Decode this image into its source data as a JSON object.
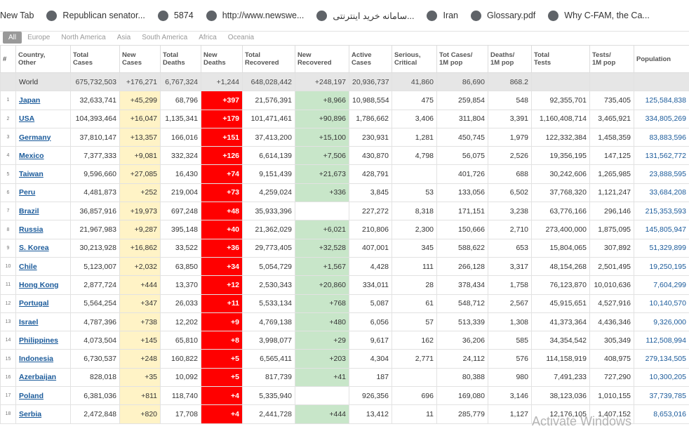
{
  "bookmarks": [
    "New Tab",
    "Republican senator...",
    "5874",
    "http://www.newswe...",
    "سامانه خرید اینترنتی...",
    "Iran",
    "Glossary.pdf",
    "Why C-FAM, the Ca..."
  ],
  "region_tabs": [
    "All",
    "Europe",
    "North America",
    "Asia",
    "South America",
    "Africa",
    "Oceania"
  ],
  "table": {
    "headers": [
      [
        "#"
      ],
      [
        "Country,",
        "Other"
      ],
      [
        "Total",
        "Cases"
      ],
      [
        "New",
        "Cases"
      ],
      [
        "Total",
        "Deaths"
      ],
      [
        "New",
        "Deaths"
      ],
      [
        "Total",
        "Recovered"
      ],
      [
        "New",
        "Recovered"
      ],
      [
        "Active",
        "Cases"
      ],
      [
        "Serious,",
        "Critical"
      ],
      [
        "Tot Cases/",
        "1M pop"
      ],
      [
        "Deaths/",
        "1M pop"
      ],
      [
        "Total",
        "Tests"
      ],
      [
        "Tests/",
        "1M pop"
      ],
      [
        "Population"
      ]
    ],
    "world_row": [
      null,
      "World",
      "675,732,503",
      "+176,271",
      "6,767,324",
      "+1,244",
      "648,028,442",
      "+248,197",
      "20,936,737",
      "41,860",
      "86,690",
      "868.2",
      null,
      null,
      null
    ],
    "rows": [
      [
        "1",
        "Japan",
        "32,633,741",
        "+45,299",
        "68,796",
        "+397",
        "21,576,391",
        "+8,966",
        "10,988,554",
        "475",
        "259,854",
        "548",
        "92,355,701",
        "735,405",
        "125,584,838"
      ],
      [
        "2",
        "USA",
        "104,393,464",
        "+16,047",
        "1,135,341",
        "+179",
        "101,471,461",
        "+90,896",
        "1,786,662",
        "3,406",
        "311,804",
        "3,391",
        "1,160,408,714",
        "3,465,921",
        "334,805,269"
      ],
      [
        "3",
        "Germany",
        "37,810,147",
        "+13,357",
        "166,016",
        "+151",
        "37,413,200",
        "+15,100",
        "230,931",
        "1,281",
        "450,745",
        "1,979",
        "122,332,384",
        "1,458,359",
        "83,883,596"
      ],
      [
        "4",
        "Mexico",
        "7,377,333",
        "+9,081",
        "332,324",
        "+126",
        "6,614,139",
        "+7,506",
        "430,870",
        "4,798",
        "56,075",
        "2,526",
        "19,356,195",
        "147,125",
        "131,562,772"
      ],
      [
        "5",
        "Taiwan",
        "9,596,660",
        "+27,085",
        "16,430",
        "+74",
        "9,151,439",
        "+21,673",
        "428,791",
        null,
        "401,726",
        "688",
        "30,242,606",
        "1,265,985",
        "23,888,595"
      ],
      [
        "6",
        "Peru",
        "4,481,873",
        "+252",
        "219,004",
        "+73",
        "4,259,024",
        "+336",
        "3,845",
        "53",
        "133,056",
        "6,502",
        "37,768,320",
        "1,121,247",
        "33,684,208"
      ],
      [
        "7",
        "Brazil",
        "36,857,916",
        "+19,973",
        "697,248",
        "+48",
        "35,933,396",
        null,
        "227,272",
        "8,318",
        "171,151",
        "3,238",
        "63,776,166",
        "296,146",
        "215,353,593"
      ],
      [
        "8",
        "Russia",
        "21,967,983",
        "+9,287",
        "395,148",
        "+40",
        "21,362,029",
        "+6,021",
        "210,806",
        "2,300",
        "150,666",
        "2,710",
        "273,400,000",
        "1,875,095",
        "145,805,947"
      ],
      [
        "9",
        "S. Korea",
        "30,213,928",
        "+16,862",
        "33,522",
        "+36",
        "29,773,405",
        "+32,528",
        "407,001",
        "345",
        "588,622",
        "653",
        "15,804,065",
        "307,892",
        "51,329,899"
      ],
      [
        "10",
        "Chile",
        "5,123,007",
        "+2,032",
        "63,850",
        "+34",
        "5,054,729",
        "+1,567",
        "4,428",
        "111",
        "266,128",
        "3,317",
        "48,154,268",
        "2,501,495",
        "19,250,195"
      ],
      [
        "11",
        "Hong Kong",
        "2,877,724",
        "+444",
        "13,370",
        "+12",
        "2,530,343",
        "+20,860",
        "334,011",
        "28",
        "378,434",
        "1,758",
        "76,123,870",
        "10,010,636",
        "7,604,299"
      ],
      [
        "12",
        "Portugal",
        "5,564,254",
        "+347",
        "26,033",
        "+11",
        "5,533,134",
        "+768",
        "5,087",
        "61",
        "548,712",
        "2,567",
        "45,915,651",
        "4,527,916",
        "10,140,570"
      ],
      [
        "13",
        "Israel",
        "4,787,396",
        "+738",
        "12,202",
        "+9",
        "4,769,138",
        "+480",
        "6,056",
        "57",
        "513,339",
        "1,308",
        "41,373,364",
        "4,436,346",
        "9,326,000"
      ],
      [
        "14",
        "Philippines",
        "4,073,504",
        "+145",
        "65,810",
        "+8",
        "3,998,077",
        "+29",
        "9,617",
        "162",
        "36,206",
        "585",
        "34,354,542",
        "305,349",
        "112,508,994"
      ],
      [
        "15",
        "Indonesia",
        "6,730,537",
        "+248",
        "160,822",
        "+5",
        "6,565,411",
        "+203",
        "4,304",
        "2,771",
        "24,112",
        "576",
        "114,158,919",
        "408,975",
        "279,134,505"
      ],
      [
        "16",
        "Azerbaijan",
        "828,018",
        "+35",
        "10,092",
        "+5",
        "817,739",
        "+41",
        "187",
        null,
        "80,388",
        "980",
        "7,491,233",
        "727,290",
        "10,300,205"
      ],
      [
        "17",
        "Poland",
        "6,381,036",
        "+811",
        "118,740",
        "+4",
        "5,335,940",
        null,
        "926,356",
        "696",
        "169,080",
        "3,146",
        "38,123,036",
        "1,010,155",
        "37,739,785"
      ],
      [
        "18",
        "Serbia",
        "2,472,848",
        "+820",
        "17,708",
        "+4",
        "2,441,728",
        "+444",
        "13,412",
        "11",
        "285,779",
        "1,127",
        "12,176,105",
        "1,407,152",
        "8,653,016"
      ]
    ]
  },
  "watermark": "Activate Windows"
}
